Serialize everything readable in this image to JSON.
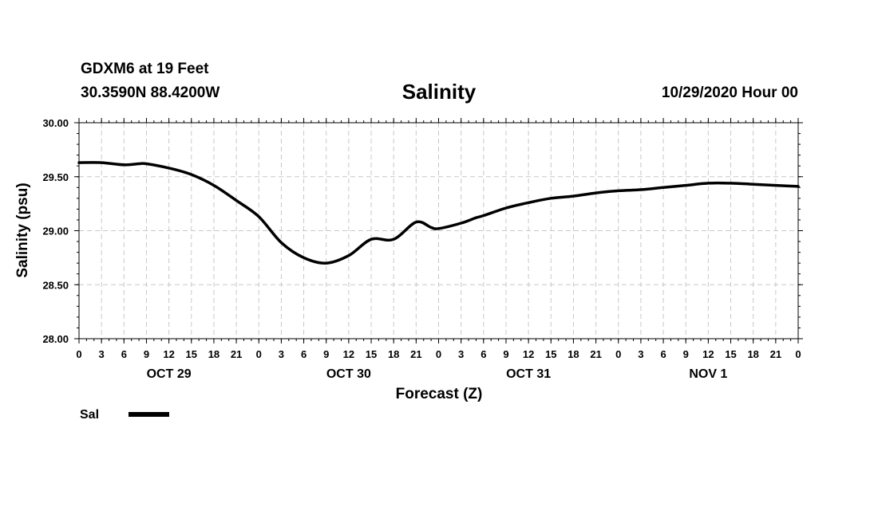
{
  "header": {
    "station": "GDXM6 at 19 Feet",
    "coords": "30.3590N 88.4200W",
    "title": "Salinity",
    "run_time": "10/29/2020 Hour 00"
  },
  "chart_data": {
    "type": "line",
    "title": "Salinity",
    "xlabel": "Forecast (Z)",
    "ylabel": "Salinity (psu)",
    "ylim": [
      28.0,
      30.0
    ],
    "xlim_hours": [
      0,
      96
    ],
    "y_ticks": [
      "28.00",
      "28.50",
      "29.00",
      "29.50",
      "30.00"
    ],
    "x_tick_step_hours": 3,
    "x_tick_labels": [
      "0",
      "3",
      "6",
      "9",
      "12",
      "15",
      "18",
      "21",
      "0",
      "3",
      "6",
      "9",
      "12",
      "15",
      "18",
      "21",
      "0",
      "3",
      "6",
      "9",
      "12",
      "15",
      "18",
      "21",
      "0",
      "3",
      "6",
      "9",
      "12",
      "15",
      "18",
      "21",
      "0"
    ],
    "day_labels": [
      {
        "label": "OCT 29",
        "hour": 12
      },
      {
        "label": "OCT 30",
        "hour": 36
      },
      {
        "label": "OCT 31",
        "hour": 60
      },
      {
        "label": "NOV 1",
        "hour": 84
      }
    ],
    "grid": true,
    "legend_position": "bottom-left",
    "series": [
      {
        "name": "Sal",
        "color": "#000000",
        "x": [
          0,
          3,
          6,
          8,
          9,
          12,
          15,
          18,
          21,
          24,
          27,
          30,
          33,
          36,
          39,
          42,
          45,
          47,
          48,
          51,
          53,
          54,
          57,
          60,
          63,
          66,
          69,
          72,
          75,
          78,
          81,
          84,
          87,
          90,
          93,
          96
        ],
        "values": [
          29.63,
          29.63,
          29.61,
          29.62,
          29.62,
          29.58,
          29.52,
          29.42,
          29.28,
          29.13,
          28.89,
          28.75,
          28.7,
          28.77,
          28.92,
          28.92,
          29.08,
          29.03,
          29.02,
          29.07,
          29.12,
          29.14,
          29.21,
          29.26,
          29.3,
          29.32,
          29.35,
          29.37,
          29.38,
          29.4,
          29.42,
          29.44,
          29.44,
          29.43,
          29.42,
          29.41
        ]
      }
    ]
  }
}
